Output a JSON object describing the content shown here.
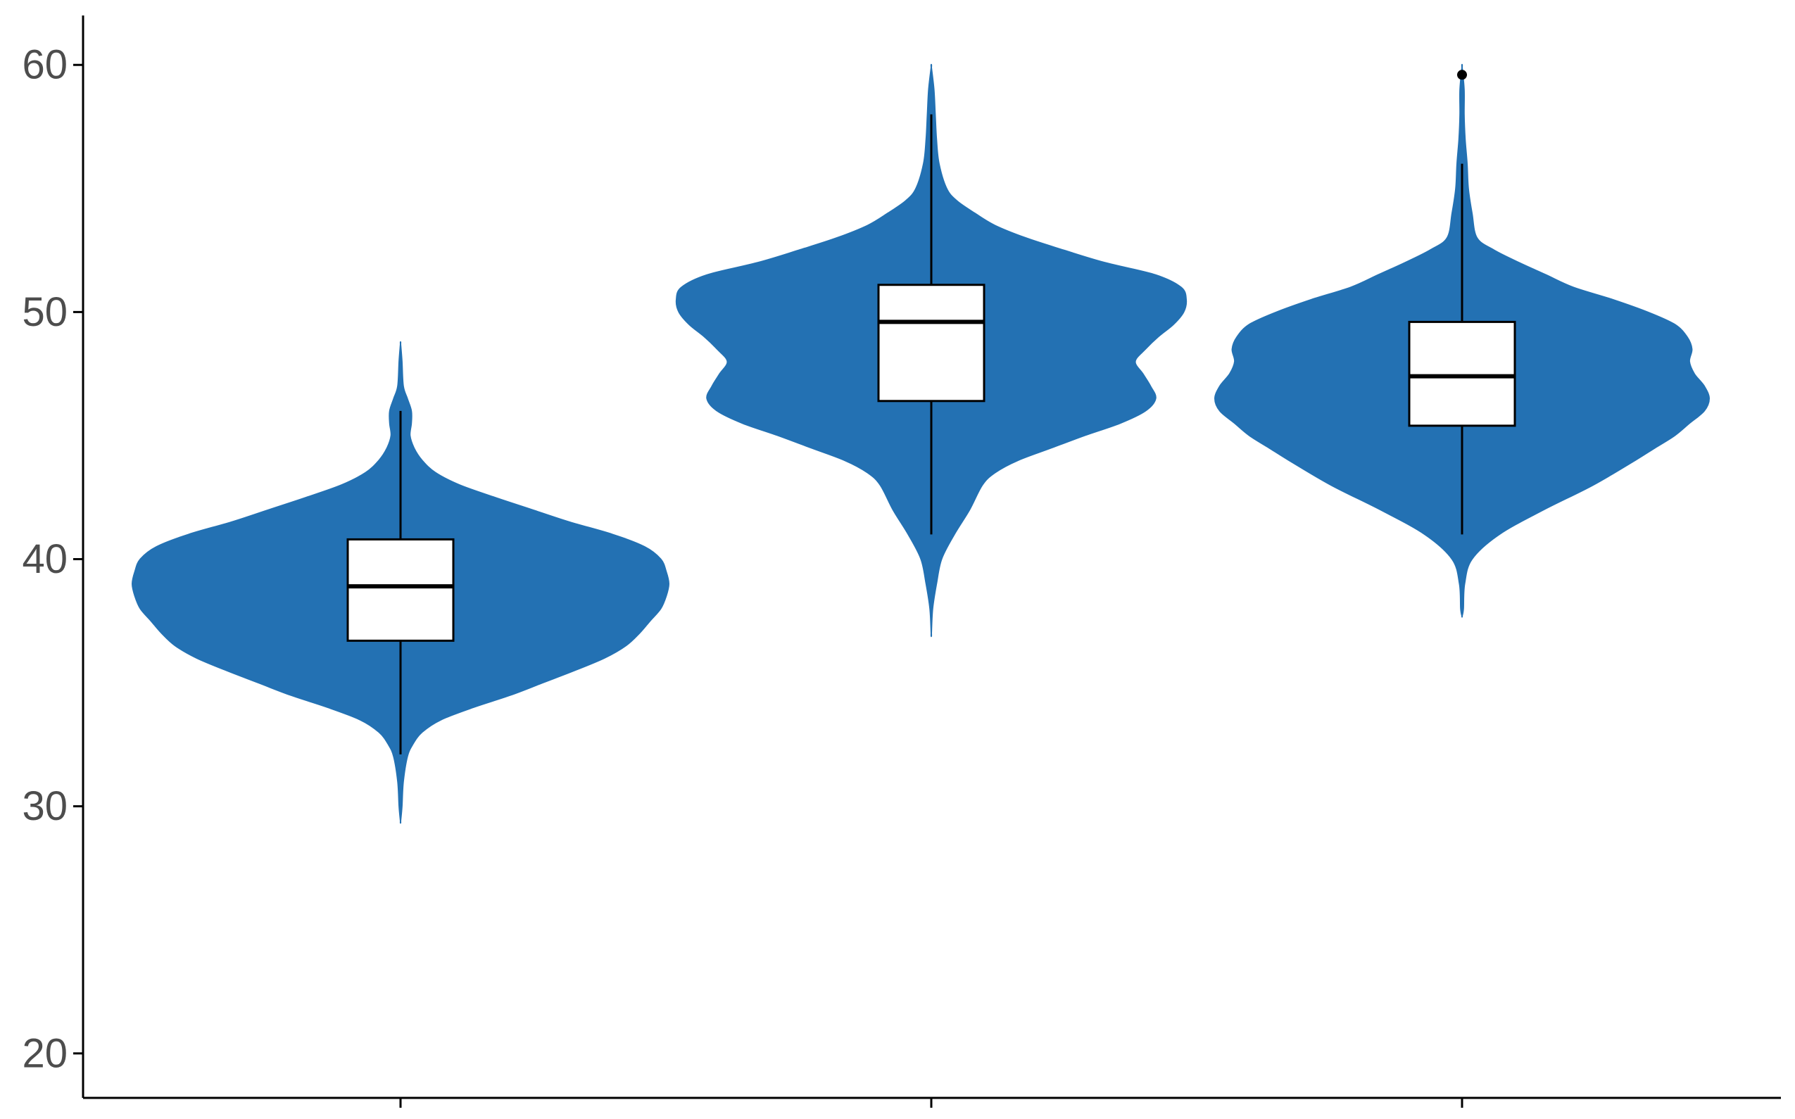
{
  "chart_data": {
    "type": "violin",
    "title": "",
    "xlabel": "",
    "ylabel": "",
    "ylim": [
      18.2,
      62
    ],
    "y_ticks": [
      20,
      30,
      40,
      50,
      60
    ],
    "grid": false,
    "legend": "none",
    "fill_color": "#2371b3",
    "groups": [
      {
        "box": {
          "lower_whisker": 32.1,
          "q1": 36.7,
          "median": 38.9,
          "q3": 40.8,
          "upper_whisker": 46.0
        },
        "outliers": [],
        "density": [
          [
            29.4,
            0.0
          ],
          [
            30.0,
            0.005
          ],
          [
            31.0,
            0.01
          ],
          [
            32.0,
            0.025
          ],
          [
            32.5,
            0.045
          ],
          [
            33.0,
            0.08
          ],
          [
            33.5,
            0.15
          ],
          [
            34.0,
            0.27
          ],
          [
            34.5,
            0.41
          ],
          [
            35.0,
            0.53
          ],
          [
            35.5,
            0.65
          ],
          [
            36.0,
            0.76
          ],
          [
            36.5,
            0.84
          ],
          [
            37.0,
            0.89
          ],
          [
            37.5,
            0.93
          ],
          [
            38.0,
            0.97
          ],
          [
            38.5,
            0.99
          ],
          [
            39.0,
            1.0
          ],
          [
            39.5,
            0.99
          ],
          [
            40.0,
            0.97
          ],
          [
            40.5,
            0.91
          ],
          [
            41.0,
            0.79
          ],
          [
            41.5,
            0.63
          ],
          [
            42.0,
            0.49
          ],
          [
            42.5,
            0.35
          ],
          [
            43.0,
            0.22
          ],
          [
            43.5,
            0.13
          ],
          [
            44.0,
            0.08
          ],
          [
            44.5,
            0.05
          ],
          [
            45.0,
            0.035
          ],
          [
            45.5,
            0.04
          ],
          [
            46.0,
            0.04
          ],
          [
            46.5,
            0.025
          ],
          [
            47.0,
            0.01
          ],
          [
            48.0,
            0.005
          ],
          [
            48.7,
            0.0
          ]
        ]
      },
      {
        "box": {
          "lower_whisker": 41.0,
          "q1": 46.4,
          "median": 49.6,
          "q3": 51.1,
          "upper_whisker": 58.0
        },
        "outliers": [],
        "density": [
          [
            37.0,
            0.0
          ],
          [
            38.0,
            0.005
          ],
          [
            39.0,
            0.02
          ],
          [
            40.0,
            0.04
          ],
          [
            41.0,
            0.09
          ],
          [
            42.0,
            0.15
          ],
          [
            43.0,
            0.2
          ],
          [
            43.5,
            0.25
          ],
          [
            44.0,
            0.34
          ],
          [
            44.5,
            0.47
          ],
          [
            45.0,
            0.6
          ],
          [
            45.5,
            0.74
          ],
          [
            46.0,
            0.84
          ],
          [
            46.5,
            0.88
          ],
          [
            47.0,
            0.86
          ],
          [
            47.5,
            0.83
          ],
          [
            48.0,
            0.8
          ],
          [
            48.5,
            0.84
          ],
          [
            49.0,
            0.89
          ],
          [
            49.5,
            0.95
          ],
          [
            50.0,
            0.99
          ],
          [
            50.5,
            1.0
          ],
          [
            51.0,
            0.98
          ],
          [
            51.5,
            0.88
          ],
          [
            52.0,
            0.68
          ],
          [
            52.5,
            0.52
          ],
          [
            53.0,
            0.37
          ],
          [
            53.5,
            0.25
          ],
          [
            54.0,
            0.17
          ],
          [
            54.5,
            0.1
          ],
          [
            55.0,
            0.06
          ],
          [
            56.0,
            0.03
          ],
          [
            57.0,
            0.02
          ],
          [
            58.0,
            0.015
          ],
          [
            59.0,
            0.01
          ],
          [
            59.9,
            0.0
          ]
        ]
      },
      {
        "box": {
          "lower_whisker": 41.0,
          "q1": 45.4,
          "median": 47.4,
          "q3": 49.6,
          "upper_whisker": 56.0
        },
        "outliers": [
          59.6
        ],
        "density": [
          [
            37.7,
            0.0
          ],
          [
            38.0,
            0.005
          ],
          [
            39.0,
            0.01
          ],
          [
            40.0,
            0.04
          ],
          [
            41.0,
            0.15
          ],
          [
            42.0,
            0.33
          ],
          [
            43.0,
            0.53
          ],
          [
            44.0,
            0.7
          ],
          [
            44.5,
            0.78
          ],
          [
            45.0,
            0.86
          ],
          [
            45.5,
            0.92
          ],
          [
            46.0,
            0.98
          ],
          [
            46.5,
            1.0
          ],
          [
            47.0,
            0.98
          ],
          [
            47.5,
            0.94
          ],
          [
            48.0,
            0.92
          ],
          [
            48.5,
            0.93
          ],
          [
            49.0,
            0.91
          ],
          [
            49.5,
            0.86
          ],
          [
            50.0,
            0.75
          ],
          [
            50.5,
            0.61
          ],
          [
            51.0,
            0.45
          ],
          [
            51.5,
            0.34
          ],
          [
            52.0,
            0.23
          ],
          [
            52.5,
            0.13
          ],
          [
            53.0,
            0.06
          ],
          [
            54.0,
            0.04
          ],
          [
            55.0,
            0.025
          ],
          [
            56.0,
            0.02
          ],
          [
            57.0,
            0.012
          ],
          [
            58.0,
            0.008
          ],
          [
            59.0,
            0.008
          ],
          [
            59.9,
            0.0
          ]
        ]
      }
    ]
  }
}
